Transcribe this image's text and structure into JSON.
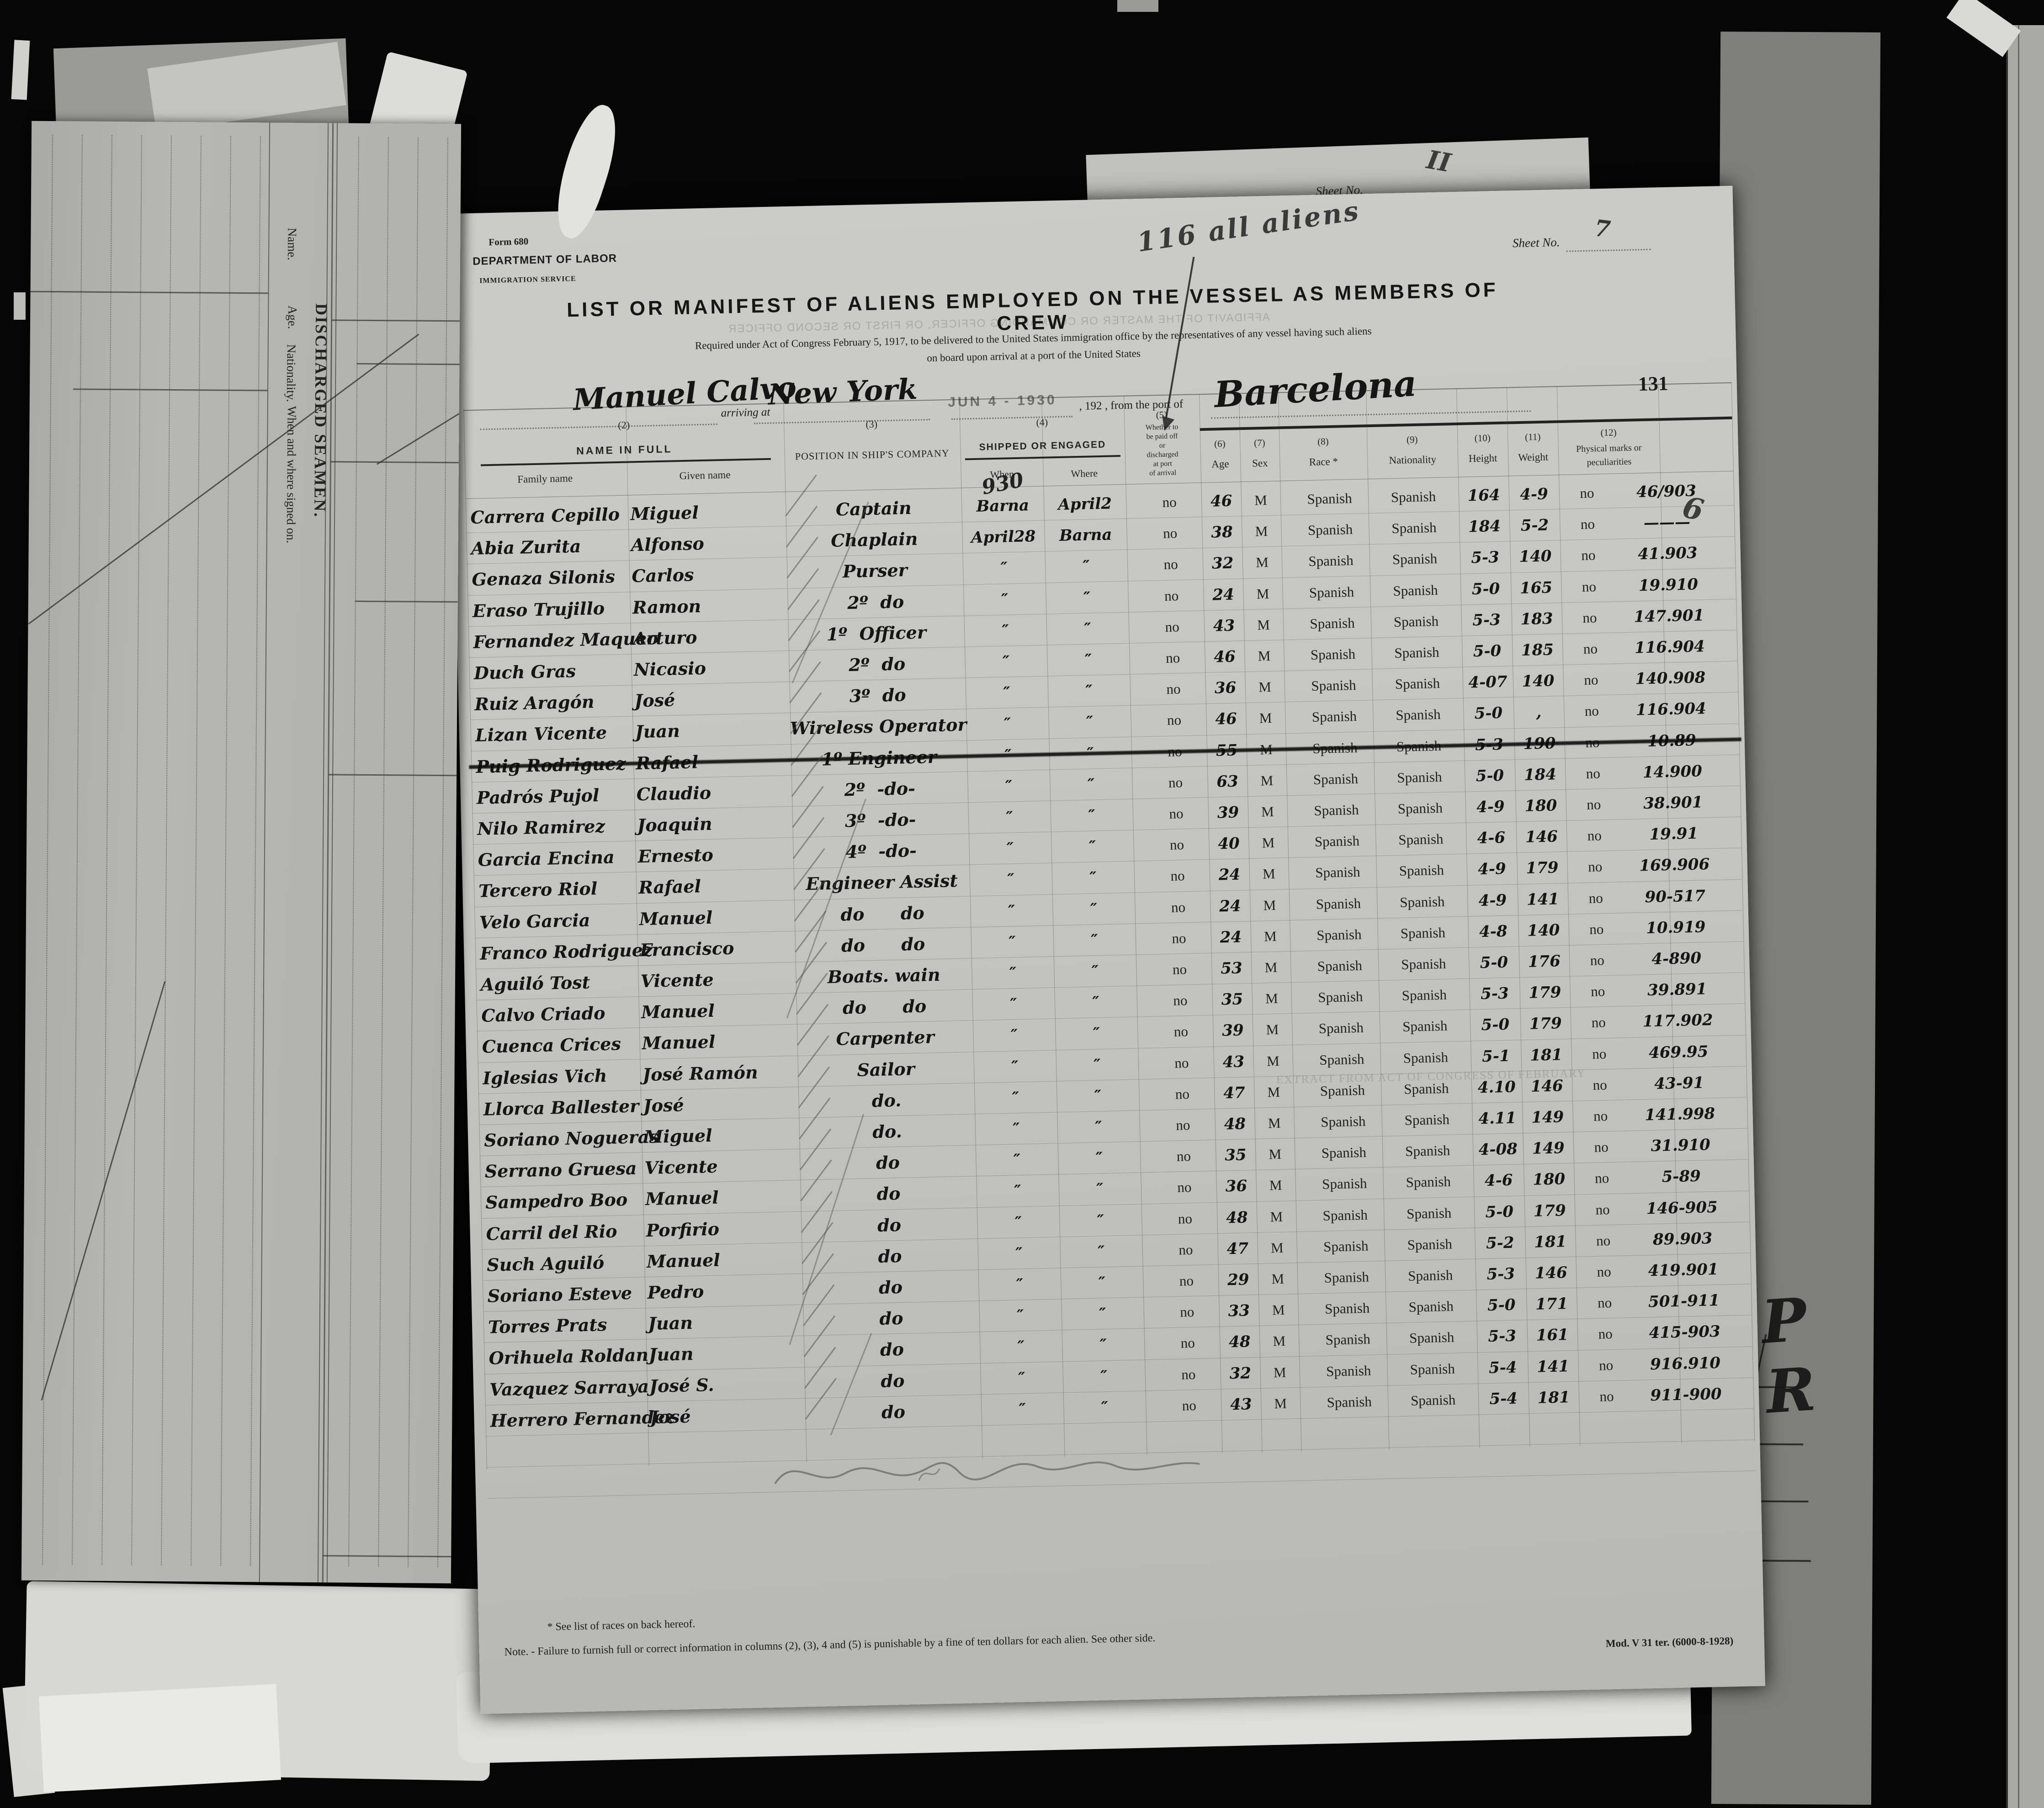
{
  "document": {
    "form_number": "Form 680",
    "department": "DEPARTMENT OF LABOR",
    "service": "IMMIGRATION SERVICE",
    "sheet_no_label": "Sheet No.",
    "sheet_no_value": "7",
    "pencil_note": "116 all aliens",
    "stamp_number": "131",
    "title": "LIST OR MANIFEST OF ALIENS EMPLOYED ON THE VESSEL AS MEMBERS OF CREW",
    "subtitle1": "Required under Act of Congress February 5, 1917, to be delivered to the United States immigration office by the representatives of any vessel having such aliens",
    "subtitle2": "on board upon arrival at a port of the United States",
    "vessel_name": "Manuel Calvo",
    "arriving_at_label": "arriving at",
    "port_of_arrival": "New York",
    "date_stamp": "JUN 4 - 1930",
    "year_from_label": ", 192  , from the port of",
    "port_of_departure": "Barcelona",
    "margin_doodle": "6",
    "footnote1": "*  See list of races on back hereof.",
    "footnote2": "Note. - Failure to furnish full or correct information in columns (2), (3), 4 and (5) is punishable by a fine of ten dollars for each alien. See other side.",
    "mod_line": "Mod. V 31 ter. (6000-8-1928)"
  },
  "underlying_page": {
    "title": "DISCHARGED SEAMEN.",
    "col_name": "Name.",
    "col_age": "Age.",
    "col_nationality": "Nationality.",
    "col_signed_on": "When and where signed on.",
    "sheet_no_label": "Sheet No.",
    "sheet_no_value": "II",
    "margin_note": "P R"
  },
  "bleedthrough": {
    "affidavit": "AFFIDAVIT OF THE MASTER OR COMMANDING OFFICER, OR FIRST OR SECOND OFFICER",
    "extract": "EXTRACT FROM ACT OF CONGRESS OF FEBRUARY"
  },
  "annotations": {
    "when_note": "930"
  },
  "table": {
    "header": {
      "col2_num": "(2)",
      "name_in_full": "NAME IN FULL",
      "family": "Family name",
      "given": "Given name",
      "col3_num": "(3)",
      "position": "POSITION IN SHIP'S COMPANY",
      "col4_num": "(4)",
      "shipped": "SHIPPED OR ENGAGED",
      "when": "When",
      "where": "Where",
      "col5_num": "(5)",
      "paid_off_lines": "Whether to\nbe paid off\nor\ndischarged\nat port\nof arrival",
      "col6_num": "(6)",
      "age": "Age",
      "col7_num": "(7)",
      "sex": "Sex",
      "col8_num": "(8)",
      "race": "Race *",
      "col9_num": "(9)",
      "nationality": "Nationality",
      "col10_num": "(10)",
      "height": "Height",
      "col11_num": "(11)",
      "weight": "Weight",
      "col12_num": "(12)",
      "marks": "Physical marks or",
      "marks2": "peculiarities"
    },
    "rows": [
      {
        "family": "Carrera Cepillo",
        "given": "Miguel",
        "position": "Captain",
        "when": "Barna",
        "where": "April2",
        "paid": "no",
        "age": "46",
        "sex": "M",
        "race": "Spanish",
        "nationality": "Spanish",
        "height": "164",
        "weight": "4-9",
        "marks_no": "no",
        "marks_num": "46/903",
        "struck": false
      },
      {
        "family": "Abia Zurita",
        "given": "Alfonso",
        "position": "Chaplain",
        "when": "April28",
        "where": "Barna",
        "paid": "no",
        "age": "38",
        "sex": "M",
        "race": "Spanish",
        "nationality": "Spanish",
        "height": "184",
        "weight": "5-2",
        "marks_no": "no",
        "marks_num": "———",
        "struck": false
      },
      {
        "family": "Genaza Silonis",
        "given": "Carlos",
        "position": "Purser",
        "when": "″",
        "where": "″",
        "paid": "no",
        "age": "32",
        "sex": "M",
        "race": "Spanish",
        "nationality": "Spanish",
        "height": "5-3",
        "weight": "140",
        "marks_no": "no",
        "marks_num": "41.903",
        "struck": false
      },
      {
        "family": "Eraso Trujillo",
        "given": "Ramon",
        "position": "2º  do",
        "when": "″",
        "where": "″",
        "paid": "no",
        "age": "24",
        "sex": "M",
        "race": "Spanish",
        "nationality": "Spanish",
        "height": "5-0",
        "weight": "165",
        "marks_no": "no",
        "marks_num": "19.910",
        "struck": false
      },
      {
        "family": "Fernandez Maqueo",
        "given": "Arturo",
        "position": "1º  Officer",
        "when": "″",
        "where": "″",
        "paid": "no",
        "age": "43",
        "sex": "M",
        "race": "Spanish",
        "nationality": "Spanish",
        "height": "5-3",
        "weight": "183",
        "marks_no": "no",
        "marks_num": "147.901",
        "struck": false
      },
      {
        "family": "Duch Gras",
        "given": "Nicasio",
        "position": "2º  do",
        "when": "″",
        "where": "″",
        "paid": "no",
        "age": "46",
        "sex": "M",
        "race": "Spanish",
        "nationality": "Spanish",
        "height": "5-0",
        "weight": "185",
        "marks_no": "no",
        "marks_num": "116.904",
        "struck": false
      },
      {
        "family": "Ruiz Aragón",
        "given": "José",
        "position": "3º  do",
        "when": "″",
        "where": "″",
        "paid": "no",
        "age": "36",
        "sex": "M",
        "race": "Spanish",
        "nationality": "Spanish",
        "height": "4-07",
        "weight": "140",
        "marks_no": "no",
        "marks_num": "140.908",
        "struck": false
      },
      {
        "family": "Lizan Vicente",
        "given": "Juan",
        "position": "Wireless Operator",
        "when": "″",
        "where": "″",
        "paid": "no",
        "age": "46",
        "sex": "M",
        "race": "Spanish",
        "nationality": "Spanish",
        "height": "5-0",
        "weight": ",",
        "marks_no": "no",
        "marks_num": "116.904",
        "struck": false
      },
      {
        "family": "Puig Rodriguez",
        "given": "Rafael",
        "position": "1º Engineer",
        "when": "″",
        "where": "″",
        "paid": "no",
        "age": "55",
        "sex": "M",
        "race": "Spanish",
        "nationality": "Spanish",
        "height": "5-3",
        "weight": "190",
        "marks_no": "no",
        "marks_num": "10.89",
        "struck": true
      },
      {
        "family": "Padrós Pujol",
        "given": "Claudio",
        "position": "2º  -do-",
        "when": "″",
        "where": "″",
        "paid": "no",
        "age": "63",
        "sex": "M",
        "race": "Spanish",
        "nationality": "Spanish",
        "height": "5-0",
        "weight": "184",
        "marks_no": "no",
        "marks_num": "14.900",
        "struck": false
      },
      {
        "family": "Nilo Ramirez",
        "given": "Joaquin",
        "position": "3º  -do-",
        "when": "″",
        "where": "″",
        "paid": "no",
        "age": "39",
        "sex": "M",
        "race": "Spanish",
        "nationality": "Spanish",
        "height": "4-9",
        "weight": "180",
        "marks_no": "no",
        "marks_num": "38.901",
        "struck": false
      },
      {
        "family": "Garcia Encina",
        "given": "Ernesto",
        "position": "4º  -do-",
        "when": "″",
        "where": "″",
        "paid": "no",
        "age": "40",
        "sex": "M",
        "race": "Spanish",
        "nationality": "Spanish",
        "height": "4-6",
        "weight": "146",
        "marks_no": "no",
        "marks_num": "19.91",
        "struck": false
      },
      {
        "family": "Tercero Riol",
        "given": "Rafael",
        "position": "Engineer Assist",
        "when": "″",
        "where": "″",
        "paid": "no",
        "age": "24",
        "sex": "M",
        "race": "Spanish",
        "nationality": "Spanish",
        "height": "4-9",
        "weight": "179",
        "marks_no": "no",
        "marks_num": "169.906",
        "struck": false
      },
      {
        "family": "Velo Garcia",
        "given": "Manuel",
        "position": "do      do",
        "when": "″",
        "where": "″",
        "paid": "no",
        "age": "24",
        "sex": "M",
        "race": "Spanish",
        "nationality": "Spanish",
        "height": "4-9",
        "weight": "141",
        "marks_no": "no",
        "marks_num": "90-517",
        "struck": false
      },
      {
        "family": "Franco Rodriguez",
        "given": "Francisco",
        "position": "do      do",
        "when": "″",
        "where": "″",
        "paid": "no",
        "age": "24",
        "sex": "M",
        "race": "Spanish",
        "nationality": "Spanish",
        "height": "4-8",
        "weight": "140",
        "marks_no": "no",
        "marks_num": "10.919",
        "struck": false
      },
      {
        "family": "Aguiló Tost",
        "given": "Vicente",
        "position": "Boats. wain",
        "when": "″",
        "where": "″",
        "paid": "no",
        "age": "53",
        "sex": "M",
        "race": "Spanish",
        "nationality": "Spanish",
        "height": "5-0",
        "weight": "176",
        "marks_no": "no",
        "marks_num": "4-890",
        "struck": false
      },
      {
        "family": "Calvo Criado",
        "given": "Manuel",
        "position": "do      do",
        "when": "″",
        "where": "″",
        "paid": "no",
        "age": "35",
        "sex": "M",
        "race": "Spanish",
        "nationality": "Spanish",
        "height": "5-3",
        "weight": "179",
        "marks_no": "no",
        "marks_num": "39.891",
        "struck": false
      },
      {
        "family": "Cuenca Crices",
        "given": "Manuel",
        "position": "Carpenter",
        "when": "″",
        "where": "″",
        "paid": "no",
        "age": "39",
        "sex": "M",
        "race": "Spanish",
        "nationality": "Spanish",
        "height": "5-0",
        "weight": "179",
        "marks_no": "no",
        "marks_num": "117.902",
        "struck": false
      },
      {
        "family": "Iglesias Vich",
        "given": "José Ramón",
        "position": "Sailor",
        "when": "″",
        "where": "″",
        "paid": "no",
        "age": "43",
        "sex": "M",
        "race": "Spanish",
        "nationality": "Spanish",
        "height": "5-1",
        "weight": "181",
        "marks_no": "no",
        "marks_num": "469.95",
        "struck": false
      },
      {
        "family": "Llorca Ballester",
        "given": "José",
        "position": "do.",
        "when": "″",
        "where": "″",
        "paid": "no",
        "age": "47",
        "sex": "M",
        "race": "Spanish",
        "nationality": "Spanish",
        "height": "4.10",
        "weight": "146",
        "marks_no": "no",
        "marks_num": "43-91",
        "struck": false
      },
      {
        "family": "Soriano Nogueras",
        "given": "Miguel",
        "position": "do.",
        "when": "″",
        "where": "″",
        "paid": "no",
        "age": "48",
        "sex": "M",
        "race": "Spanish",
        "nationality": "Spanish",
        "height": "4.11",
        "weight": "149",
        "marks_no": "no",
        "marks_num": "141.998",
        "struck": false
      },
      {
        "family": "Serrano Gruesa",
        "given": "Vicente",
        "position": "do",
        "when": "″",
        "where": "″",
        "paid": "no",
        "age": "35",
        "sex": "M",
        "race": "Spanish",
        "nationality": "Spanish",
        "height": "4-08",
        "weight": "149",
        "marks_no": "no",
        "marks_num": "31.910",
        "struck": false
      },
      {
        "family": "Sampedro Boo",
        "given": "Manuel",
        "position": "do",
        "when": "″",
        "where": "″",
        "paid": "no",
        "age": "36",
        "sex": "M",
        "race": "Spanish",
        "nationality": "Spanish",
        "height": "4-6",
        "weight": "180",
        "marks_no": "no",
        "marks_num": "5-89",
        "struck": false
      },
      {
        "family": "Carril del Rio",
        "given": "Porfirio",
        "position": "do",
        "when": "″",
        "where": "″",
        "paid": "no",
        "age": "48",
        "sex": "M",
        "race": "Spanish",
        "nationality": "Spanish",
        "height": "5-0",
        "weight": "179",
        "marks_no": "no",
        "marks_num": "146-905",
        "struck": false
      },
      {
        "family": "Such Aguiló",
        "given": "Manuel",
        "position": "do",
        "when": "″",
        "where": "″",
        "paid": "no",
        "age": "47",
        "sex": "M",
        "race": "Spanish",
        "nationality": "Spanish",
        "height": "5-2",
        "weight": "181",
        "marks_no": "no",
        "marks_num": "89.903",
        "struck": false
      },
      {
        "family": "Soriano Esteve",
        "given": "Pedro",
        "position": "do",
        "when": "″",
        "where": "″",
        "paid": "no",
        "age": "29",
        "sex": "M",
        "race": "Spanish",
        "nationality": "Spanish",
        "height": "5-3",
        "weight": "146",
        "marks_no": "no",
        "marks_num": "419.901",
        "struck": false
      },
      {
        "family": "Torres Prats",
        "given": "Juan",
        "position": "do",
        "when": "″",
        "where": "″",
        "paid": "no",
        "age": "33",
        "sex": "M",
        "race": "Spanish",
        "nationality": "Spanish",
        "height": "5-0",
        "weight": "171",
        "marks_no": "no",
        "marks_num": "501-911",
        "struck": false
      },
      {
        "family": "Orihuela Roldan",
        "given": "Juan",
        "position": "do",
        "when": "″",
        "where": "″",
        "paid": "no",
        "age": "48",
        "sex": "M",
        "race": "Spanish",
        "nationality": "Spanish",
        "height": "5-3",
        "weight": "161",
        "marks_no": "no",
        "marks_num": "415-903",
        "struck": false
      },
      {
        "family": "Vazquez Sarraya",
        "given": "José S.",
        "position": "do",
        "when": "″",
        "where": "″",
        "paid": "no",
        "age": "32",
        "sex": "M",
        "race": "Spanish",
        "nationality": "Spanish",
        "height": "5-4",
        "weight": "141",
        "marks_no": "no",
        "marks_num": "916.910",
        "struck": false
      },
      {
        "family": "Herrero Fernandez",
        "given": "José",
        "position": "do",
        "when": "″",
        "where": "″",
        "paid": "no",
        "age": "43",
        "sex": "M",
        "race": "Spanish",
        "nationality": "Spanish",
        "height": "5-4",
        "weight": "181",
        "marks_no": "no",
        "marks_num": "911-900",
        "struck": false
      }
    ]
  }
}
